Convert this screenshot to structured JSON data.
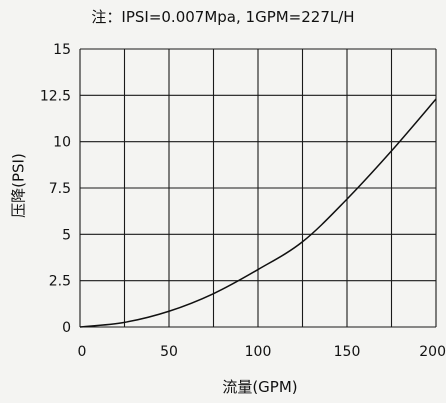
{
  "note": "注：IPSI=0.007Mpa, 1GPM=227L/H",
  "chart_data": {
    "type": "line",
    "title": "",
    "xlabel": "流量(GPM)",
    "ylabel": "压降(PSI)",
    "xlim": [
      0,
      200
    ],
    "ylim": [
      0,
      15
    ],
    "x_ticks": [
      0,
      50,
      100,
      150,
      200
    ],
    "x_tick_labels": [
      "0",
      "50",
      "100",
      "150",
      "200"
    ],
    "y_ticks": [
      0,
      2.5,
      5,
      7.5,
      10,
      12.5,
      15
    ],
    "y_tick_labels": [
      "0",
      "2.5",
      "5",
      "7.5",
      "10",
      "12.5",
      "15"
    ],
    "x_grid_step": 25,
    "grid": true,
    "legend": "none",
    "series": [
      {
        "x": [
          0,
          25,
          50,
          75,
          100,
          125,
          150,
          175,
          200
        ],
        "y": [
          0,
          0.25,
          0.85,
          1.8,
          3.1,
          4.6,
          6.9,
          9.5,
          12.3
        ]
      }
    ]
  }
}
